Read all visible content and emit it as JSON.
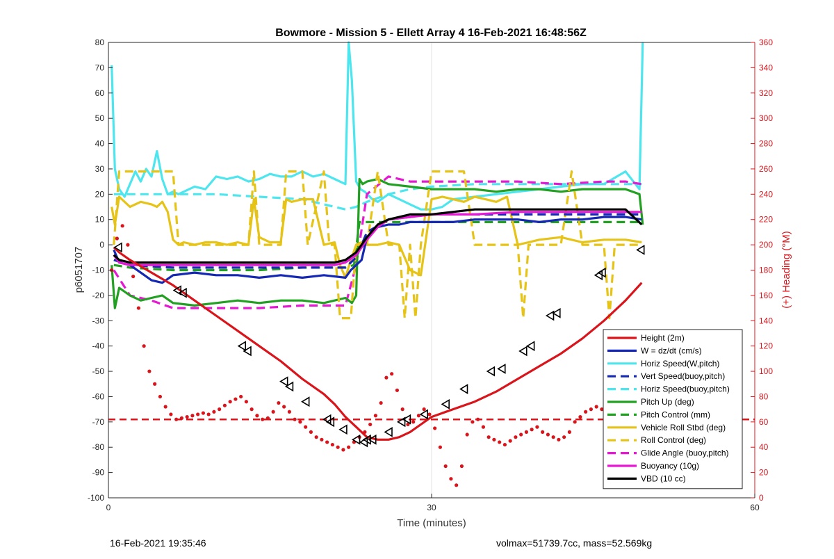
{
  "footer": {
    "left_text": "16-Feb-2021 19:35:46",
    "right_text": "volmax=51739.7cc, mass=52.569kg"
  },
  "chart_data": {
    "type": "line",
    "title": "Bowmore - Mission 5 - Ellett Array 4 16-Feb-2021 16:48:56Z",
    "xlabel": "Time (minutes)",
    "ylabel": "p6051707",
    "y2label": "(+) Heading (°M)",
    "xlim": [
      0,
      60
    ],
    "ylim": [
      -100,
      80
    ],
    "y2lim": [
      0,
      360
    ],
    "xticks": [
      0,
      30,
      60
    ],
    "yticks": [
      -100,
      -90,
      -80,
      -70,
      -60,
      -50,
      -40,
      -30,
      -20,
      -10,
      0,
      10,
      20,
      30,
      40,
      50,
      60,
      70,
      80
    ],
    "y2ticks": [
      0,
      20,
      40,
      60,
      80,
      100,
      120,
      140,
      160,
      180,
      200,
      220,
      240,
      260,
      280,
      300,
      320,
      340,
      360
    ],
    "grid": "x-only",
    "legend_position": "lower-right",
    "colors": {
      "red": "#d9141a",
      "blue": "#1428b4",
      "cyan": "#4de6ee",
      "green": "#22a022",
      "gold": "#e6c317",
      "magenta": "#e619d2",
      "black": "#000000",
      "right_axis": "#d9141a"
    },
    "series": [
      {
        "name": "Height (2m)",
        "color": "#d9141a",
        "style": "solid",
        "axis": "left",
        "x": [
          0.5,
          1,
          2,
          4,
          6,
          8,
          10,
          12,
          14,
          16,
          18,
          20,
          21,
          22,
          23,
          24,
          25,
          26,
          27,
          28,
          29,
          30,
          32,
          34,
          36,
          38,
          40,
          42,
          44,
          46,
          48,
          49.5
        ],
        "y": [
          -1,
          -3,
          -6,
          -11,
          -16,
          -22,
          -28,
          -34,
          -40,
          -46,
          -53,
          -59,
          -63,
          -68,
          -72,
          -76,
          -77,
          -77,
          -76,
          -74,
          -71,
          -68,
          -65,
          -62,
          -58,
          -53,
          -48,
          -43,
          -37,
          -30,
          -22,
          -15
        ]
      },
      {
        "name": "W = dz/dt (cm/s)",
        "color": "#1428b4",
        "style": "solid",
        "axis": "left",
        "x": [
          0.5,
          1,
          2,
          3,
          4,
          5,
          6,
          8,
          10,
          12,
          14,
          16,
          18,
          20,
          22,
          22.5,
          23,
          23.5,
          24,
          25,
          26,
          27,
          28,
          30,
          32,
          34,
          36,
          38,
          40,
          42,
          44,
          46,
          48,
          49.5
        ],
        "y": [
          -2,
          -7,
          -8,
          -11,
          -14,
          -15,
          -12,
          -11,
          -12,
          -12,
          -13,
          -12,
          -13,
          -12,
          -13,
          -10,
          -8,
          -6,
          3,
          7,
          8,
          8,
          9,
          9,
          9,
          10,
          10,
          10,
          9,
          10,
          10,
          11,
          11,
          10
        ]
      },
      {
        "name": "Horiz Speed(W,pitch)",
        "color": "#4de6ee",
        "style": "solid",
        "axis": "left",
        "x": [
          0.3,
          0.6,
          1,
          1.5,
          2,
          2.5,
          3,
          3.5,
          4,
          4.5,
          5,
          5.5,
          6,
          6.5,
          7,
          8,
          9,
          10,
          11,
          12,
          13,
          14,
          15,
          16,
          17,
          18,
          19,
          20,
          21,
          22,
          22.3,
          22.6,
          23,
          23.4,
          23.8,
          24.5,
          25,
          26,
          27,
          28,
          29,
          30,
          31,
          32,
          34,
          36,
          38,
          40,
          42,
          44,
          46,
          48,
          49.3,
          49.6
        ],
        "y": [
          71,
          30,
          22,
          19,
          24,
          29,
          25,
          30,
          27,
          37,
          26,
          20,
          21,
          20,
          21,
          23,
          22,
          27,
          26,
          27,
          25,
          26,
          28,
          27,
          27,
          29,
          27,
          28,
          26,
          24,
          80,
          65,
          25,
          22,
          21,
          18,
          17,
          20,
          18,
          16,
          14,
          14,
          15,
          18,
          19,
          20,
          21,
          22,
          23,
          24,
          24,
          29,
          22,
          80
        ]
      },
      {
        "name": "Vert Speed(buoy,pitch)",
        "color": "#1428b4",
        "style": "dashed",
        "axis": "left",
        "x": [
          0.5,
          2,
          6,
          10,
          14,
          18,
          22,
          23,
          24,
          26,
          28,
          30,
          34,
          38,
          42,
          46,
          49.5
        ],
        "y": [
          -6,
          -8,
          -9,
          -9,
          -9,
          -9,
          -9,
          -5,
          5,
          10,
          11,
          12,
          12,
          12,
          12,
          12,
          12
        ]
      },
      {
        "name": "Horiz Speed(buoy,pitch)",
        "color": "#4de6ee",
        "style": "dashed",
        "axis": "left",
        "x": [
          0.5,
          2,
          6,
          10,
          14,
          18,
          20,
          22,
          23,
          24,
          26,
          28,
          30,
          34,
          38,
          42,
          46,
          49.5
        ],
        "y": [
          20,
          20,
          20,
          20,
          19,
          18,
          16,
          14,
          15,
          17,
          20,
          22,
          23,
          24,
          24,
          24,
          24,
          24
        ]
      },
      {
        "name": "Pitch Up (deg)",
        "color": "#22a022",
        "style": "solid",
        "axis": "left",
        "x": [
          0.3,
          0.6,
          1,
          2,
          3,
          4,
          5,
          6,
          8,
          10,
          12,
          14,
          16,
          18,
          20,
          22,
          22.6,
          23,
          23.3,
          23.6,
          24,
          25,
          26,
          28,
          30,
          32,
          34,
          36,
          38,
          40,
          42,
          44,
          46,
          48,
          49.3,
          49.6
        ],
        "y": [
          -8,
          -25,
          -17,
          -20,
          -22,
          -21,
          -20,
          -23,
          -24,
          -23,
          -22,
          -23,
          -22,
          -22,
          -23,
          -21,
          -23,
          -20,
          26,
          24,
          25,
          26,
          24,
          23,
          22,
          22,
          22,
          21,
          22,
          22,
          21,
          22,
          22,
          22,
          20,
          8
        ]
      },
      {
        "name": "Pitch Control (mm)",
        "color": "#22a022",
        "style": "dashed",
        "axis": "left",
        "x": [
          0.5,
          2,
          6,
          10,
          14,
          18,
          22,
          22.8,
          23.3,
          24,
          26,
          28,
          30,
          34,
          38,
          42,
          46,
          49.5
        ],
        "y": [
          -8,
          -9,
          -10,
          -10,
          -10,
          -9,
          -9,
          -8,
          9,
          9,
          9,
          9,
          9,
          9,
          9,
          9,
          9,
          9
        ]
      },
      {
        "name": "Vehicle Roll Stbd (deg)",
        "color": "#e6c317",
        "style": "solid",
        "axis": "left",
        "x": [
          0.3,
          0.6,
          1,
          2,
          3,
          4,
          4.5,
          5,
          5.5,
          6,
          6.5,
          7,
          8,
          9,
          10,
          11,
          12,
          13,
          13.5,
          14,
          15,
          16,
          16.5,
          17,
          18,
          19,
          20,
          21,
          21.5,
          22,
          22.5,
          23,
          23.5,
          24,
          25,
          26,
          27,
          28,
          29,
          30,
          31,
          32,
          33,
          34,
          35,
          36,
          37,
          38,
          39,
          40,
          42,
          44,
          46,
          48,
          49.5
        ],
        "y": [
          15,
          8,
          19,
          15,
          17,
          16,
          15,
          17,
          13,
          2,
          0,
          1,
          0,
          1,
          1,
          0,
          1,
          0,
          18,
          3,
          1,
          1,
          18,
          17,
          18,
          18,
          0,
          1,
          -8,
          -13,
          -6,
          0,
          1,
          0,
          0,
          1,
          0,
          -10,
          -12,
          18,
          19,
          18,
          17,
          19,
          18,
          17,
          19,
          0,
          1,
          2,
          3,
          1,
          2,
          2,
          1
        ]
      },
      {
        "name": "Roll Control (deg)",
        "color": "#e6c317",
        "style": "dashed",
        "axis": "left",
        "x": [
          0.5,
          1,
          2,
          5,
          6,
          6.5,
          7,
          12,
          13,
          13.5,
          14,
          16,
          16.5,
          18,
          18.5,
          20,
          20.5,
          21,
          21.5,
          22,
          22.5,
          23,
          24,
          25,
          26,
          27,
          27.5,
          28,
          28.5,
          29,
          30,
          33,
          34,
          38,
          38.5,
          39,
          40,
          42,
          43,
          44,
          46,
          46.5,
          47,
          48,
          49.5
        ],
        "y": [
          0,
          29,
          29,
          29,
          29,
          0,
          0,
          0,
          0,
          29,
          0,
          0,
          29,
          29,
          0,
          29,
          0,
          0,
          -29,
          -29,
          -29,
          0,
          0,
          29,
          0,
          0,
          -29,
          0,
          -29,
          0,
          29,
          29,
          0,
          0,
          -29,
          0,
          0,
          0,
          29,
          0,
          0,
          -29,
          0,
          0,
          0
        ]
      },
      {
        "name": "Glide Angle (buoy,pitch)",
        "color": "#e619d2",
        "style": "dashed",
        "axis": "left",
        "x": [
          0.5,
          2,
          4,
          6,
          10,
          14,
          18,
          22,
          23,
          24,
          26,
          28,
          30,
          34,
          38,
          42,
          46,
          48,
          49.5
        ],
        "y": [
          -10,
          -20,
          -22,
          -25,
          -25,
          -25,
          -24,
          -24,
          -8,
          20,
          27,
          25,
          25,
          25,
          25,
          24,
          25,
          25,
          24
        ]
      },
      {
        "name": "Buoyancy (10g)",
        "color": "#e619d2",
        "style": "solid",
        "axis": "left",
        "x": [
          0.5,
          1,
          2,
          6,
          10,
          14,
          18,
          21,
          22,
          23,
          24,
          25,
          26,
          28,
          30,
          34,
          38,
          42,
          46,
          48,
          49.5
        ],
        "y": [
          -4,
          -7,
          -8,
          -8,
          -8,
          -8,
          -8,
          -8,
          -7,
          -4,
          2,
          7,
          10,
          11,
          12,
          12,
          13,
          13,
          13,
          13,
          13
        ]
      },
      {
        "name": "VBD (10 cc)",
        "color": "#000000",
        "style": "solid",
        "axis": "left",
        "x": [
          0.5,
          1,
          2,
          6,
          10,
          14,
          18,
          21,
          22,
          23,
          24,
          25,
          26,
          28,
          30,
          34,
          38,
          42,
          46,
          48,
          49.5
        ],
        "y": [
          -4,
          -6,
          -7,
          -7,
          -7,
          -7,
          -7,
          -7,
          -6,
          -3,
          3,
          8,
          10,
          12,
          12,
          14,
          14,
          14,
          14,
          14,
          8
        ]
      }
    ],
    "heading_points": {
      "name": "Heading",
      "axis": "right",
      "color": "#d9141a",
      "x": [
        0.3,
        0.8,
        1.3,
        1.8,
        2.3,
        2.8,
        3.3,
        3.8,
        4.3,
        4.8,
        5.3,
        5.8,
        6.3,
        6.8,
        7.3,
        7.8,
        8.3,
        8.8,
        9.3,
        9.8,
        10.3,
        10.8,
        11.3,
        11.8,
        12.3,
        12.8,
        13.3,
        13.8,
        14.3,
        14.8,
        15.3,
        15.8,
        16.3,
        16.8,
        17.3,
        17.8,
        18.3,
        18.8,
        19.3,
        19.8,
        20.3,
        20.8,
        21.3,
        21.8,
        22.3,
        22.8,
        23.3,
        23.8,
        24.3,
        24.8,
        25.3,
        25.8,
        26.3,
        26.8,
        27.3,
        27.8,
        28.3,
        28.8,
        29.3,
        29.8,
        30.3,
        30.8,
        31.3,
        31.8,
        32.3,
        32.8,
        33.3,
        33.8,
        34.3,
        34.8,
        35.3,
        35.8,
        36.3,
        36.8,
        37.3,
        37.8,
        38.3,
        38.8,
        39.3,
        39.8,
        40.3,
        40.8,
        41.3,
        41.8,
        42.3,
        42.8,
        43.3,
        43.8,
        44.3,
        44.8,
        45.3,
        45.8,
        46.3,
        46.8,
        47.3,
        47.8
      ],
      "y": [
        180,
        205,
        215,
        200,
        175,
        150,
        120,
        100,
        90,
        80,
        72,
        66,
        62,
        63,
        64,
        65,
        66,
        67,
        66,
        68,
        70,
        73,
        76,
        78,
        80,
        76,
        70,
        65,
        62,
        63,
        68,
        75,
        72,
        68,
        62,
        60,
        56,
        52,
        48,
        46,
        44,
        42,
        40,
        38,
        40,
        44,
        48,
        52,
        58,
        65,
        75,
        95,
        98,
        85,
        70,
        58,
        60,
        65,
        70,
        66,
        55,
        40,
        25,
        15,
        10,
        25,
        50,
        60,
        62,
        56,
        48,
        46,
        44,
        42,
        45,
        48,
        50,
        52,
        54,
        56,
        52,
        50,
        48,
        46,
        48,
        52,
        60,
        64,
        68,
        70,
        72,
        70,
        65,
        60,
        56,
        55
      ]
    },
    "heading_ref_line": {
      "y2": 62,
      "style": "dashed",
      "color": "#d9141a"
    },
    "height_markers": {
      "name": "Height markers",
      "x": [
        0.9,
        6.4,
        6.9,
        12.4,
        12.9,
        16.3,
        16.8,
        18.3,
        20.3,
        20.6,
        21.8,
        23.0,
        23.7,
        24.0,
        24.5,
        26.0,
        27.2,
        27.7,
        29.3,
        31.3,
        33.0,
        35.5,
        36.5,
        38.5,
        39.2,
        41.0,
        41.6,
        45.5,
        45.8,
        49.4
      ],
      "y": [
        -1,
        -18,
        -19,
        -40,
        -42,
        -54,
        -56,
        -62,
        -69,
        -70,
        -73,
        -77,
        -78,
        -77,
        -77,
        -74,
        -70,
        -69,
        -67,
        -63,
        -57,
        -50,
        -49,
        -42,
        -40,
        -28,
        -27,
        -12,
        -11,
        -2
      ]
    }
  }
}
